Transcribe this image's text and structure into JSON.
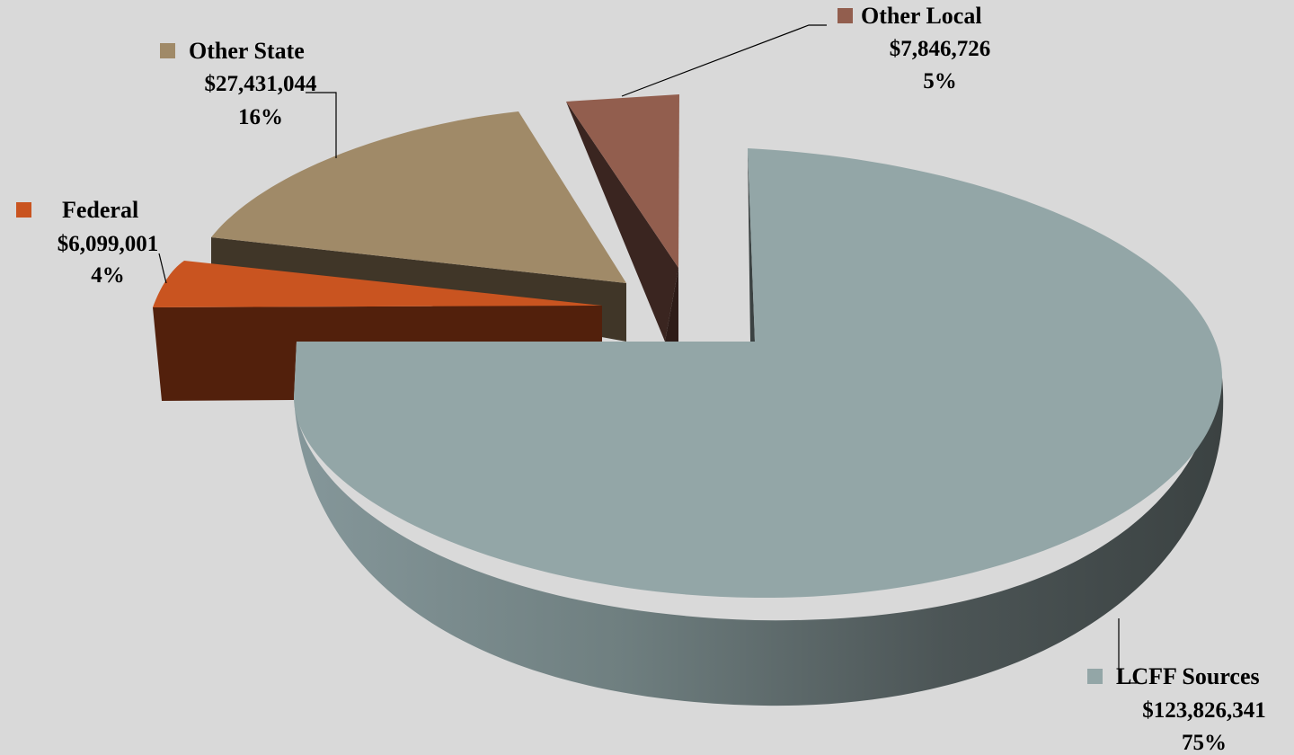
{
  "chart_data": {
    "type": "pie",
    "title": "",
    "style": "3d-exploded",
    "slices": [
      {
        "name": "LCFF Sources",
        "amount": "$123,826,341",
        "percent": "75%",
        "value": 123826341,
        "color": "#93a6a7"
      },
      {
        "name": "Federal",
        "amount": "$6,099,001",
        "percent": "4%",
        "value": 6099001,
        "color": "#c95420"
      },
      {
        "name": "Other State",
        "amount": "$27,431,044",
        "percent": "16%",
        "value": 27431044,
        "color": "#a08a68"
      },
      {
        "name": "Other Local",
        "amount": "$7,846,726",
        "percent": "5%",
        "value": 7846726,
        "color": "#925e4e"
      }
    ]
  }
}
